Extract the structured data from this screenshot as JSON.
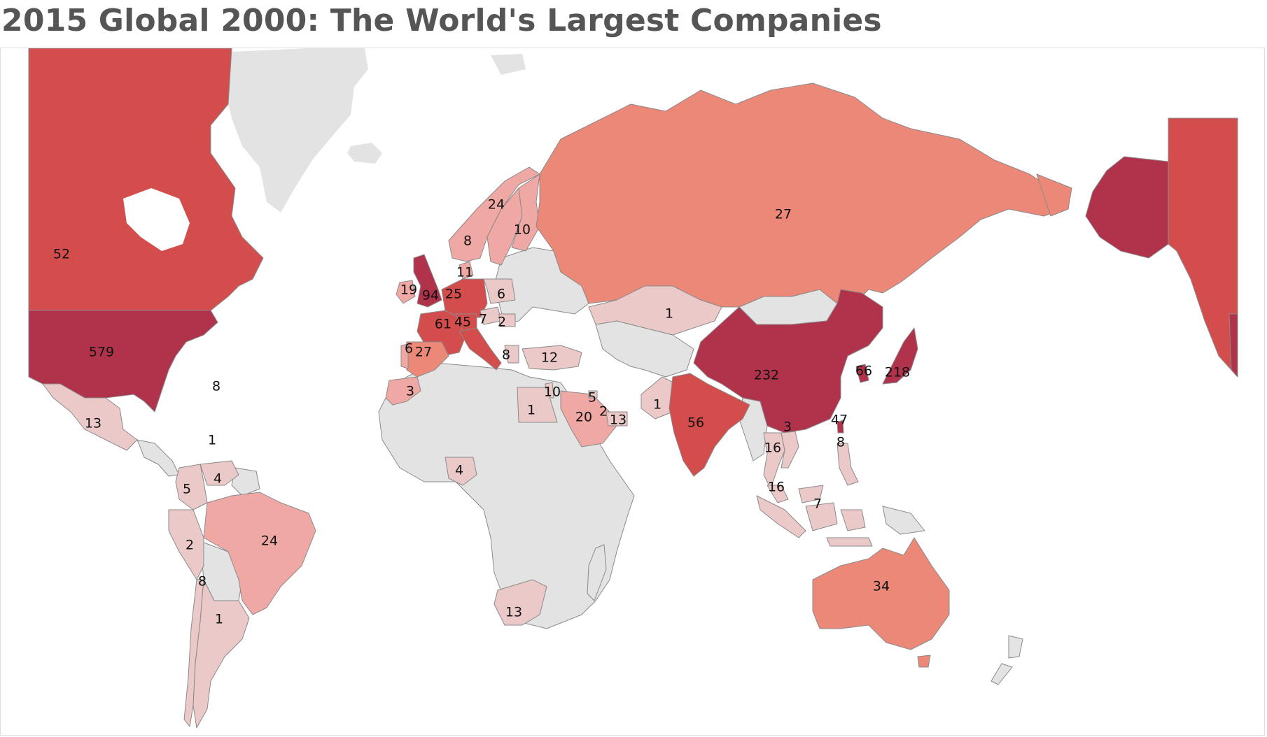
{
  "title": "2015 Global 2000: The World's Largest Companies",
  "colors": {
    "no_data": "#e3e3e3",
    "tier1": "#ecc9c9",
    "tier2": "#f0a8a4",
    "tier3": "#ec8878",
    "tier4": "#d44d4d",
    "tier5": "#b0334b",
    "border": "#8a8a8a"
  },
  "labels": [
    {
      "id": "canada",
      "text": "52"
    },
    {
      "id": "usa",
      "text": "579"
    },
    {
      "id": "bermuda",
      "text": "8"
    },
    {
      "id": "mexico",
      "text": "13"
    },
    {
      "id": "caribbean",
      "text": "1"
    },
    {
      "id": "colombia",
      "text": "5"
    },
    {
      "id": "venezuela",
      "text": "4"
    },
    {
      "id": "peru",
      "text": "2"
    },
    {
      "id": "brazil",
      "text": "24"
    },
    {
      "id": "chile",
      "text": "8"
    },
    {
      "id": "argentina",
      "text": "1"
    },
    {
      "id": "ireland",
      "text": "19"
    },
    {
      "id": "uk",
      "text": "94"
    },
    {
      "id": "netherlands",
      "text": "25"
    },
    {
      "id": "poland",
      "text": "6"
    },
    {
      "id": "france",
      "text": "61"
    },
    {
      "id": "switzerland",
      "text": "45"
    },
    {
      "id": "austria",
      "text": "7"
    },
    {
      "id": "hungary",
      "text": "2"
    },
    {
      "id": "portugal",
      "text": "6"
    },
    {
      "id": "spain",
      "text": "27"
    },
    {
      "id": "italy",
      "text": "8"
    },
    {
      "id": "turkey",
      "text": "12"
    },
    {
      "id": "morocco",
      "text": "3"
    },
    {
      "id": "norway",
      "text": "8"
    },
    {
      "id": "sweden",
      "text": "24"
    },
    {
      "id": "finland",
      "text": "10"
    },
    {
      "id": "denmark",
      "text": "11"
    },
    {
      "id": "russia",
      "text": "27"
    },
    {
      "id": "kazakhstan",
      "text": "1"
    },
    {
      "id": "israel",
      "text": "10"
    },
    {
      "id": "egypt",
      "text": "1"
    },
    {
      "id": "kuwait",
      "text": "5"
    },
    {
      "id": "qatar",
      "text": "2"
    },
    {
      "id": "uae",
      "text": "13"
    },
    {
      "id": "saudi",
      "text": "20"
    },
    {
      "id": "pakistan",
      "text": "1"
    },
    {
      "id": "india",
      "text": "56"
    },
    {
      "id": "china",
      "text": "232"
    },
    {
      "id": "korea",
      "text": "66"
    },
    {
      "id": "japan",
      "text": "218"
    },
    {
      "id": "vietnam",
      "text": "3"
    },
    {
      "id": "taiwan",
      "text": "47"
    },
    {
      "id": "philippines",
      "text": "8"
    },
    {
      "id": "thailand",
      "text": "16"
    },
    {
      "id": "malaysia",
      "text": "16"
    },
    {
      "id": "indonesia",
      "text": "7"
    },
    {
      "id": "nigeria",
      "text": "4"
    },
    {
      "id": "south_africa",
      "text": "13"
    },
    {
      "id": "australia",
      "text": "34"
    }
  ]
}
